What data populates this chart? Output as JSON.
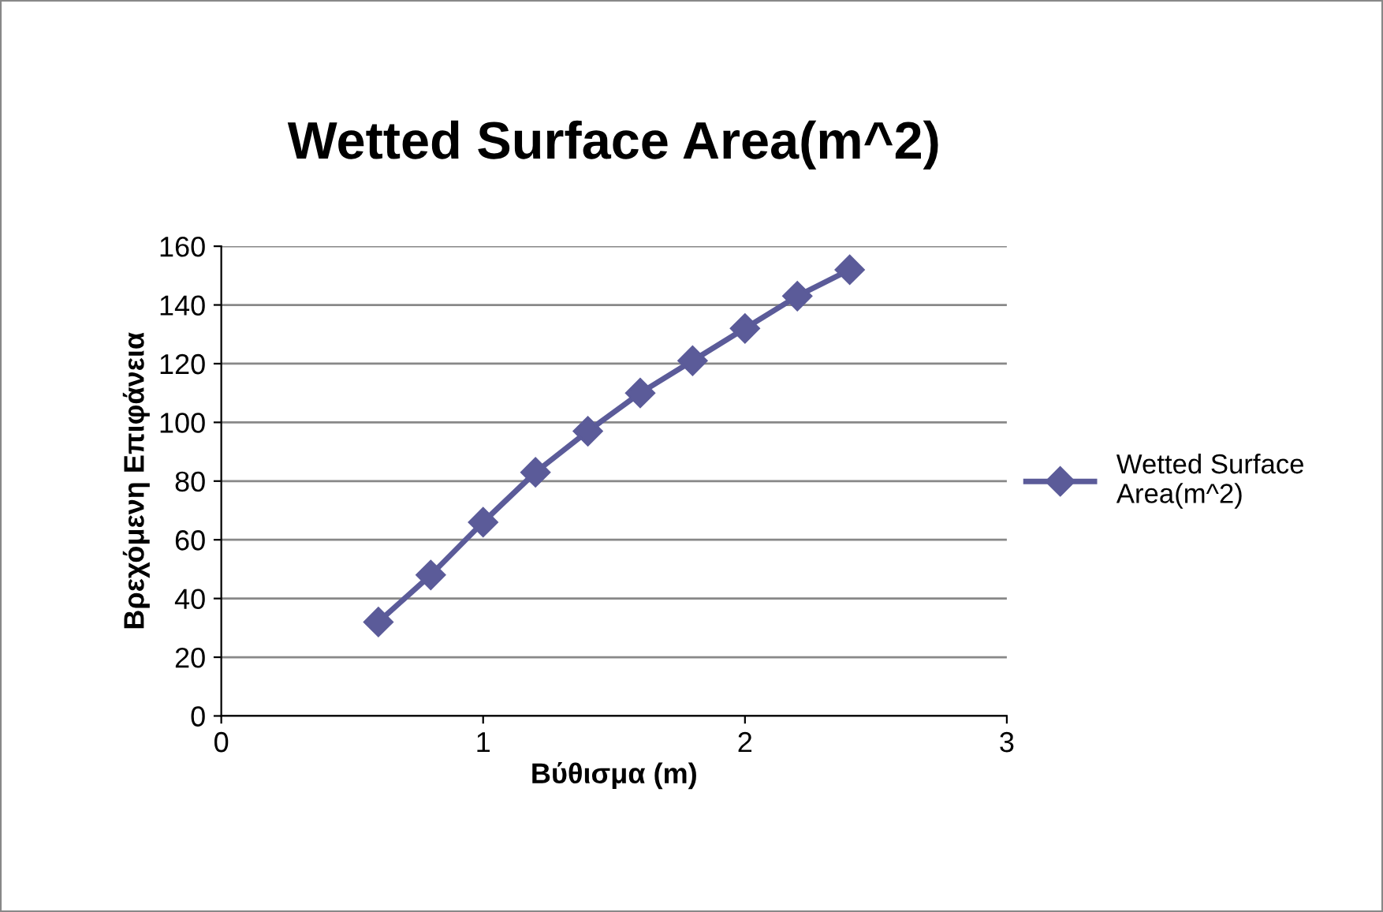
{
  "chart_data": {
    "type": "line",
    "title": "Wetted Surface Area(m^2)",
    "xlabel": "Βύθισμα (m)",
    "ylabel": "Βρεχόμενη Επιφάνεια",
    "x": [
      0.6,
      0.8,
      1.0,
      1.2,
      1.4,
      1.6,
      1.8,
      2.0,
      2.2,
      2.4
    ],
    "series": [
      {
        "name": "Wetted Surface Area(m^2)",
        "color": "#5b5b99",
        "values": [
          32,
          48,
          66,
          83,
          97,
          110,
          121,
          132,
          143,
          152
        ]
      }
    ],
    "xlim": [
      0,
      3
    ],
    "xticks": [
      0,
      1,
      2,
      3
    ],
    "ylim": [
      0,
      160
    ],
    "yticks": [
      0,
      20,
      40,
      60,
      80,
      100,
      120,
      140,
      160
    ],
    "grid": "y",
    "legend": "right",
    "marker": "diamond",
    "line_style": "solid"
  }
}
